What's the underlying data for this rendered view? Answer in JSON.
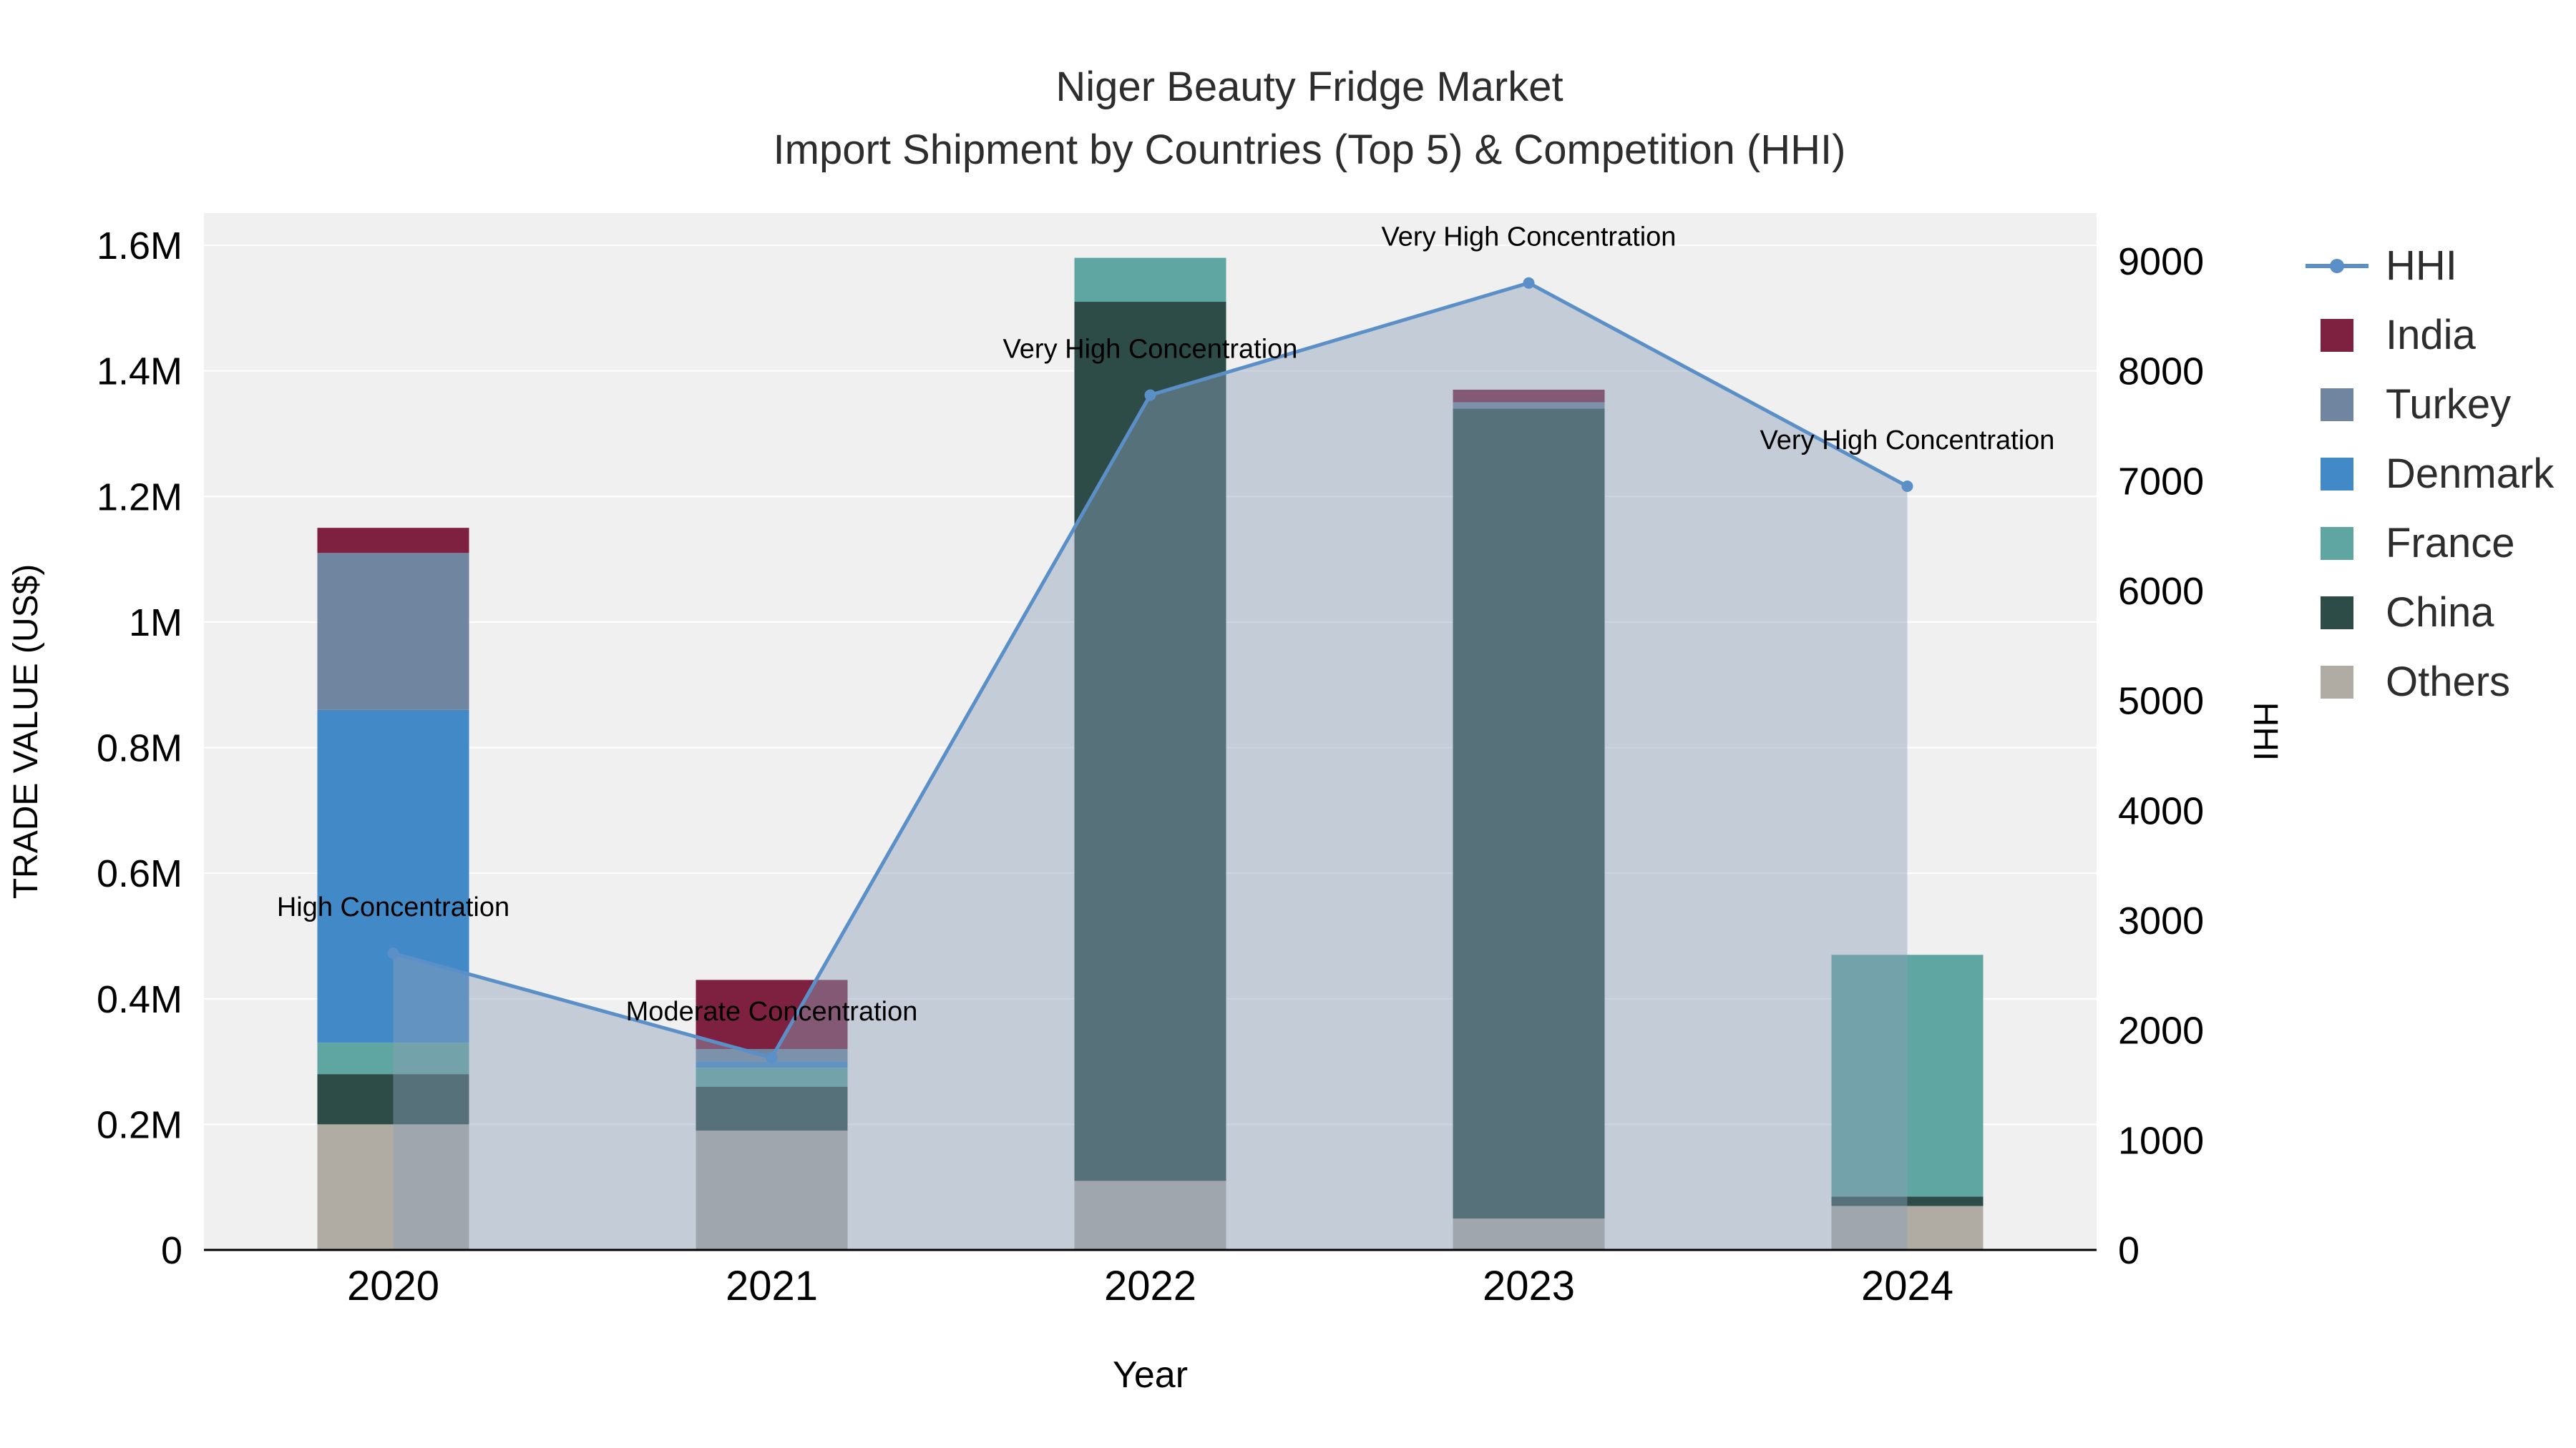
{
  "title": {
    "line1": "Niger Beauty Fridge Market",
    "line2": "Import Shipment by Countries (Top 5) & Competition (HHI)"
  },
  "chart_data": {
    "type": "bar",
    "stacked": true,
    "title": "Niger Beauty Fridge Market — Import Shipment by Countries (Top 5) & Competition (HHI)",
    "xlabel": "Year",
    "ylabel_left": "TRADE VALUE (US$)",
    "ylabel_right": "HHI",
    "units_left": "millions of US$",
    "categories": [
      "2020",
      "2021",
      "2022",
      "2023",
      "2024"
    ],
    "series": [
      {
        "name": "Others",
        "color": "#b0aca4",
        "values": [
          0.2,
          0.19,
          0.11,
          0.05,
          0.07
        ]
      },
      {
        "name": "China",
        "color": "#2d4b47",
        "values": [
          0.08,
          0.07,
          1.4,
          1.29,
          0.015
        ]
      },
      {
        "name": "France",
        "color": "#5fa5a1",
        "values": [
          0.05,
          0.03,
          0.07,
          0.0,
          0.385
        ]
      },
      {
        "name": "Denmark",
        "color": "#4289c7",
        "values": [
          0.53,
          0.01,
          0.0,
          0.0,
          0.0
        ]
      },
      {
        "name": "Turkey",
        "color": "#70859f",
        "values": [
          0.25,
          0.02,
          0.0,
          0.01,
          0.0
        ]
      },
      {
        "name": "India",
        "color": "#7e2040",
        "values": [
          0.04,
          0.11,
          0.0,
          0.02,
          0.0
        ]
      }
    ],
    "hhi": {
      "name": "HHI",
      "color": "#5b8fc7",
      "area_color": "rgba(140,160,185,0.45)",
      "values": [
        2700,
        1750,
        7780,
        8800,
        6950
      ]
    },
    "annotations": [
      "High Concentration",
      "Moderate Concentration",
      "Very High Concentration",
      "Very High Concentration",
      "Very High Concentration"
    ],
    "ylim_left": [
      0,
      1.6
    ],
    "ytick_vals_left": [
      0,
      0.2,
      0.4,
      0.6,
      0.8,
      1.0,
      1.2,
      1.4,
      1.6
    ],
    "ytick_labels_left": [
      "0",
      "0.2M",
      "0.4M",
      "0.6M",
      "0.8M",
      "1M",
      "1.2M",
      "1.4M",
      "1.6M"
    ],
    "ylim_right": [
      0,
      9000
    ],
    "ytick_vals_right": [
      0,
      1000,
      2000,
      3000,
      4000,
      5000,
      6000,
      7000,
      8000,
      9000
    ],
    "ytick_labels_right": [
      "0",
      "1000",
      "2000",
      "3000",
      "4000",
      "5000",
      "6000",
      "7000",
      "8000",
      "9000"
    ],
    "grid": true,
    "legend_position": "right",
    "legend": [
      {
        "name": "HHI",
        "type": "line",
        "color": "#5b8fc7"
      },
      {
        "name": "India",
        "type": "swatch",
        "color": "#7e2040"
      },
      {
        "name": "Turkey",
        "type": "swatch",
        "color": "#70859f"
      },
      {
        "name": "Denmark",
        "type": "swatch",
        "color": "#4289c7"
      },
      {
        "name": "France",
        "type": "swatch",
        "color": "#5fa5a1"
      },
      {
        "name": "China",
        "type": "swatch",
        "color": "#2d4b47"
      },
      {
        "name": "Others",
        "type": "swatch",
        "color": "#b0aca4"
      }
    ]
  }
}
